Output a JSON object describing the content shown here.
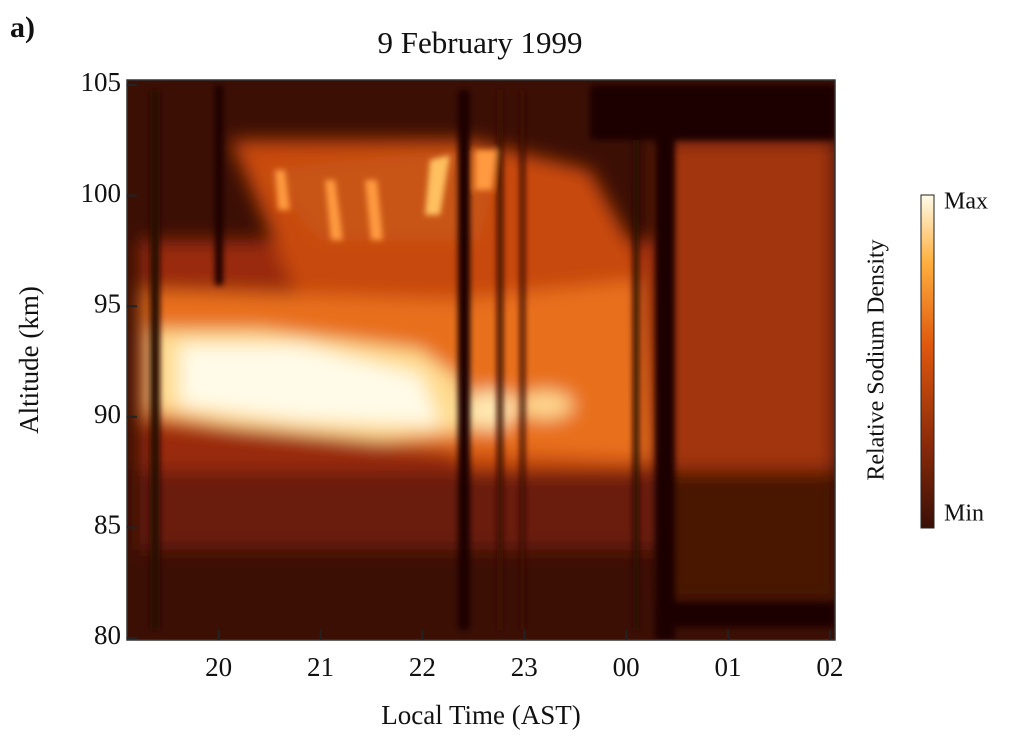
{
  "chart_data": {
    "type": "heatmap",
    "panel_label": "a)",
    "title": "9 February 1999",
    "xlabel": "Local Time (AST)",
    "ylabel": "Altitude (km)",
    "xlim": [
      19.1,
      26.05
    ],
    "ylim": [
      80,
      105
    ],
    "xticks": [
      20,
      21,
      22,
      23,
      {
        "value": 24,
        "label": "00"
      },
      {
        "value": 25,
        "label": "01"
      },
      {
        "value": 26,
        "label": "02"
      }
    ],
    "yticks": [
      80,
      85,
      90,
      95,
      100,
      105
    ],
    "colorbar": {
      "label": "Relative Sodium Density",
      "max_label": "Max",
      "min_label": "Min"
    }
  }
}
